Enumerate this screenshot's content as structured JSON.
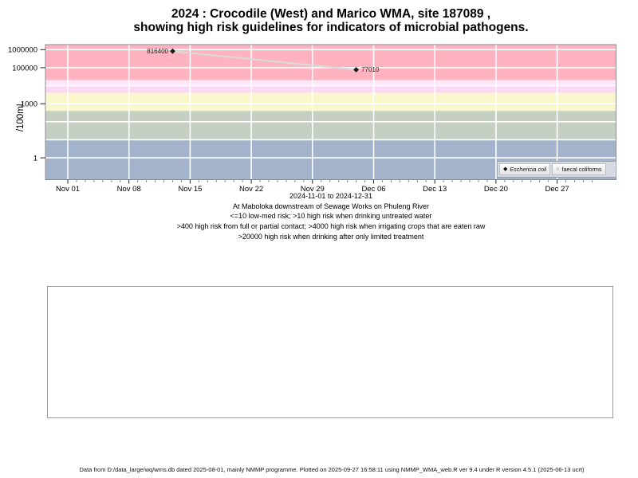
{
  "page": {
    "footer": "Data from D:/data_large/wq/wms.db dated 2025-08-01, mainly NMMP programme. Plotted on 2025-09-27 16:58:11 using NMMP_WMA_web.R ver 9.4 under R version 4.5.1 (2025-06-13 ucrt)"
  },
  "chart_data": {
    "type": "line",
    "title": [
      "2024 : Crocodile (West) and Marico WMA, site 187089 ,",
      "showing high risk guidelines for indicators of microbial pathogens."
    ],
    "ylabel": "/100mL",
    "y_axis": {
      "scale": "log10",
      "ylim": [
        0.06,
        1900000
      ],
      "ticks": [
        {
          "value": 1000000,
          "label": "1000000"
        },
        {
          "value": 100000,
          "label": "100000"
        },
        {
          "value": 1000,
          "label": "1000"
        },
        {
          "value": 1,
          "label": "1"
        }
      ],
      "gridline_decades": [
        1,
        10,
        100,
        1000,
        10000,
        100000,
        1000000
      ]
    },
    "x_axis": {
      "start": "2024-11-01",
      "end": "2024-12-31",
      "range_days": 60,
      "tick_labels": [
        "Nov 01",
        "Nov 08",
        "Nov 15",
        "Nov 22",
        "Nov 29",
        "Dec 06",
        "Dec 13",
        "Dec 20",
        "Dec 27"
      ],
      "tick_days": [
        0,
        7,
        14,
        21,
        28,
        35,
        42,
        49,
        56
      ],
      "minor_ticks_daily": true
    },
    "grid": {
      "color": "#ffffff",
      "vertical": "weekly",
      "horizontal": "decades"
    },
    "bands": [
      {
        "min": 20000,
        "max": null,
        "color": "#FFB3C0"
      },
      {
        "min": 10000,
        "max": 20000,
        "color": "#FEE7FA"
      },
      {
        "min": 4000,
        "max": 10000,
        "color": "#FBD9F6"
      },
      {
        "min": 400,
        "max": 4000,
        "color": "#FAF7CC"
      },
      {
        "min": 10,
        "max": 400,
        "color": "#C5CFC2"
      },
      {
        "min": null,
        "max": 10,
        "color": "#A2B3CB"
      }
    ],
    "series": [
      {
        "name": "Eschericia coli",
        "marker": "filled-diamond",
        "marker_color": "#1a1a1a",
        "line_color": "#d9d9d9",
        "points": [
          {
            "date": "2024-11-13",
            "day": 12,
            "value": 816400,
            "label": "816400",
            "label_side": "left"
          },
          {
            "date": "2024-12-04",
            "day": 33,
            "value": 77010,
            "label": "77010",
            "label_side": "right"
          }
        ]
      },
      {
        "name": "faecal coliforms",
        "marker": "open-circle",
        "marker_color": "#555555",
        "points": []
      }
    ],
    "legend": {
      "position": "inside-bottom-right",
      "items": [
        {
          "label": "Eschericia coli",
          "marker": "filled-diamond",
          "italic": true
        },
        {
          "label": "faecal coliforms",
          "marker": "open-circle",
          "italic": false
        }
      ]
    },
    "captions": [
      "2024-11-01 to 2024-12-31",
      "At Maboloka downstream of Sewage Works on Phuleng River",
      "<=10 low-med risk; >10 high risk when drinking untreated water",
      ">400 high risk from full or partial contact; >4000 high risk when irrigating crops that are eaten raw",
      ">20000 high risk when drinking after only limited treatment"
    ]
  }
}
